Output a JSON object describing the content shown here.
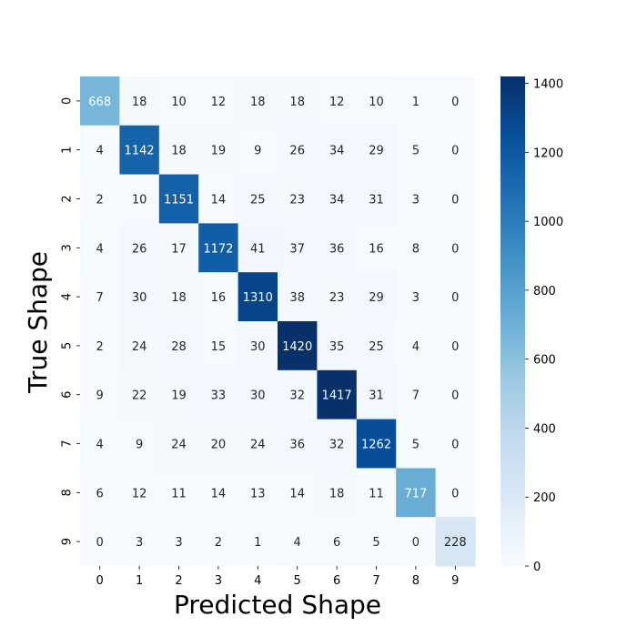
{
  "chart_data": {
    "type": "heatmap",
    "xlabel": "Predicted Shape",
    "ylabel": "True Shape",
    "x_categories": [
      "0",
      "1",
      "2",
      "3",
      "4",
      "5",
      "6",
      "7",
      "8",
      "9"
    ],
    "y_categories": [
      "0",
      "1",
      "2",
      "3",
      "4",
      "5",
      "6",
      "7",
      "8",
      "9"
    ],
    "values": [
      [
        668,
        18,
        10,
        12,
        18,
        18,
        12,
        10,
        1,
        0
      ],
      [
        4,
        1142,
        18,
        19,
        9,
        26,
        34,
        29,
        5,
        0
      ],
      [
        2,
        10,
        1151,
        14,
        25,
        23,
        34,
        31,
        3,
        0
      ],
      [
        4,
        26,
        17,
        1172,
        41,
        37,
        36,
        16,
        8,
        0
      ],
      [
        7,
        30,
        18,
        16,
        1310,
        38,
        23,
        29,
        3,
        0
      ],
      [
        2,
        24,
        28,
        15,
        30,
        1420,
        35,
        25,
        4,
        0
      ],
      [
        9,
        22,
        19,
        33,
        30,
        32,
        1417,
        31,
        7,
        0
      ],
      [
        4,
        9,
        24,
        20,
        24,
        36,
        32,
        1262,
        5,
        0
      ],
      [
        6,
        12,
        11,
        14,
        13,
        14,
        18,
        11,
        717,
        0
      ],
      [
        0,
        3,
        3,
        2,
        1,
        4,
        6,
        5,
        0,
        228
      ]
    ],
    "colorbar": {
      "colormap": "Blues",
      "range": [
        0,
        1420
      ],
      "ticks": [
        0,
        200,
        400,
        600,
        800,
        1000,
        1200,
        1400
      ]
    }
  }
}
